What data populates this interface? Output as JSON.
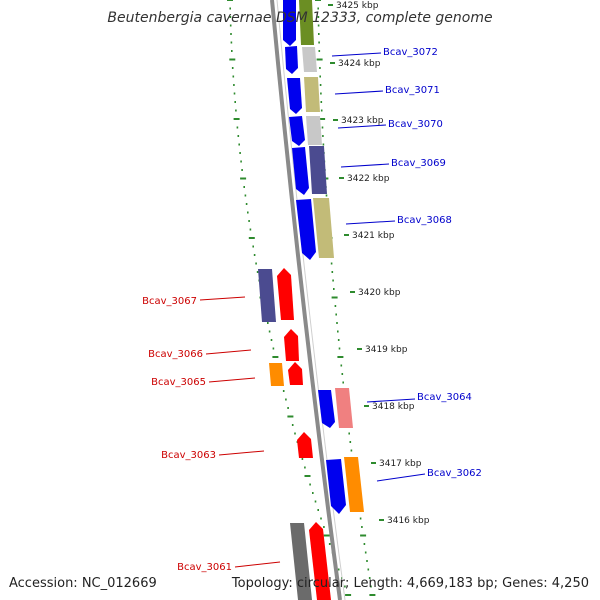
{
  "title": "Beutenbergia cavernae DSM 12333, complete genome",
  "accession": "Accession: NC_012669",
  "summary": "Topology: circular; Length: 4,669,183 bp; Genes: 4,250",
  "colors": {
    "backbone": "#8a8a8a",
    "forward_label": "#0000cc",
    "reverse_label": "#cc0000",
    "gc_ticks": "#2e8b2e"
  },
  "ruler": [
    "3425 kbp",
    "3424 kbp",
    "3423 kbp",
    "3422 kbp",
    "3421 kbp",
    "3420 kbp",
    "3419 kbp",
    "3418 kbp",
    "3417 kbp",
    "3416 kbp"
  ],
  "genes_forward": [
    "Bcav_3072",
    "Bcav_3071",
    "Bcav_3070",
    "Bcav_3069",
    "Bcav_3068",
    "Bcav_3064",
    "Bcav_3062"
  ],
  "genes_reverse": [
    "Bcav_3067",
    "Bcav_3066",
    "Bcav_3065",
    "Bcav_3063",
    "Bcav_3061"
  ]
}
